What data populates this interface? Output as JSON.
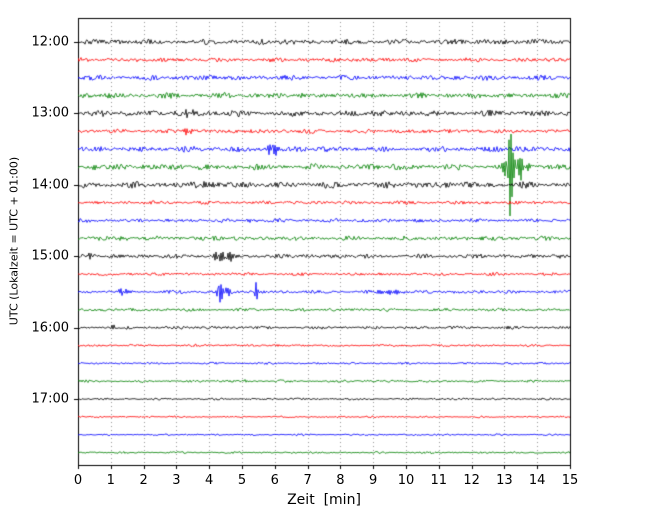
{
  "chart_data": {
    "type": "line",
    "subtype": "seismogram-helicorder",
    "title": "",
    "xlabel": "Zeit  [min]",
    "ylabel": "UTC (Lokalzeit = UTC + 01:00)",
    "xlim": [
      0,
      15
    ],
    "x_ticks": [
      0,
      1,
      2,
      3,
      4,
      5,
      6,
      7,
      8,
      9,
      10,
      11,
      12,
      13,
      14,
      15
    ],
    "y_ticks": [
      "12:00",
      "13:00",
      "14:00",
      "15:00",
      "16:00",
      "17:00"
    ],
    "minutes_per_line": 15,
    "grid": "vertical-dotted",
    "grid_color": "#999999",
    "trace_colors_cycle": [
      "#000000",
      "#ff0000",
      "#0000ff",
      "#008000"
    ],
    "traces": [
      {
        "start": "12:00",
        "color": "#000000",
        "noise": 1.9,
        "events": []
      },
      {
        "start": "12:15",
        "color": "#ff0000",
        "noise": 1.4,
        "events": []
      },
      {
        "start": "12:30",
        "color": "#0000ff",
        "noise": 1.7,
        "events": []
      },
      {
        "start": "12:45",
        "color": "#008000",
        "noise": 1.8,
        "events": []
      },
      {
        "start": "13:00",
        "color": "#000000",
        "noise": 2.0,
        "events": [
          {
            "x": 3.45,
            "amp": 3,
            "w": 0.3
          }
        ]
      },
      {
        "start": "13:15",
        "color": "#ff0000",
        "noise": 1.4,
        "events": [
          {
            "x": 3.35,
            "amp": 5,
            "w": 0.12
          }
        ]
      },
      {
        "start": "13:30",
        "color": "#0000ff",
        "noise": 1.9,
        "events": [
          {
            "x": 5.95,
            "amp": 6,
            "w": 0.2
          }
        ]
      },
      {
        "start": "13:45",
        "color": "#008000",
        "noise": 2.0,
        "events": [
          {
            "x": 0.5,
            "amp": 3,
            "w": 0.15
          },
          {
            "x": 13.15,
            "amp": 55,
            "w": 0.09
          },
          {
            "x": 13.35,
            "amp": 14,
            "w": 0.35
          }
        ]
      },
      {
        "start": "14:00",
        "color": "#000000",
        "noise": 2.1,
        "events": [
          {
            "x": 4.0,
            "amp": 4,
            "w": 0.25
          }
        ]
      },
      {
        "start": "14:15",
        "color": "#ff0000",
        "noise": 1.2,
        "events": []
      },
      {
        "start": "14:30",
        "color": "#0000ff",
        "noise": 1.2,
        "events": [
          {
            "x": 5.3,
            "amp": 2.5,
            "w": 0.15
          }
        ]
      },
      {
        "start": "14:45",
        "color": "#008000",
        "noise": 1.5,
        "events": [
          {
            "x": 1.4,
            "amp": 3,
            "w": 0.12
          }
        ]
      },
      {
        "start": "15:00",
        "color": "#000000",
        "noise": 1.4,
        "events": [
          {
            "x": 0.35,
            "amp": 4,
            "w": 0.08
          },
          {
            "x": 4.3,
            "amp": 7,
            "w": 0.18
          },
          {
            "x": 4.65,
            "amp": 5,
            "w": 0.12
          }
        ]
      },
      {
        "start": "15:15",
        "color": "#ff0000",
        "noise": 1.0,
        "events": []
      },
      {
        "start": "15:30",
        "color": "#0000ff",
        "noise": 1.1,
        "events": [
          {
            "x": 1.4,
            "amp": 3,
            "w": 0.3
          },
          {
            "x": 4.3,
            "amp": 26,
            "w": 0.06
          },
          {
            "x": 4.45,
            "amp": 6,
            "w": 0.2
          },
          {
            "x": 5.45,
            "amp": 15,
            "w": 0.05
          },
          {
            "x": 9.5,
            "amp": 2.5,
            "w": 0.4
          }
        ]
      },
      {
        "start": "15:45",
        "color": "#008000",
        "noise": 1.0,
        "events": []
      },
      {
        "start": "16:00",
        "color": "#000000",
        "noise": 1.0,
        "events": [
          {
            "x": 1.05,
            "amp": 4,
            "w": 0.06
          }
        ]
      },
      {
        "start": "16:15",
        "color": "#ff0000",
        "noise": 0.8,
        "events": []
      },
      {
        "start": "16:30",
        "color": "#0000ff",
        "noise": 0.7,
        "events": []
      },
      {
        "start": "16:45",
        "color": "#008000",
        "noise": 0.8,
        "events": [
          {
            "x": 5.1,
            "amp": 2,
            "w": 0.1
          }
        ]
      },
      {
        "start": "17:00",
        "color": "#000000",
        "noise": 0.7,
        "events": []
      },
      {
        "start": "17:15",
        "color": "#ff0000",
        "noise": 0.6,
        "events": []
      },
      {
        "start": "17:30",
        "color": "#0000ff",
        "noise": 0.6,
        "events": []
      },
      {
        "start": "17:45",
        "color": "#008000",
        "noise": 0.6,
        "events": []
      }
    ]
  }
}
